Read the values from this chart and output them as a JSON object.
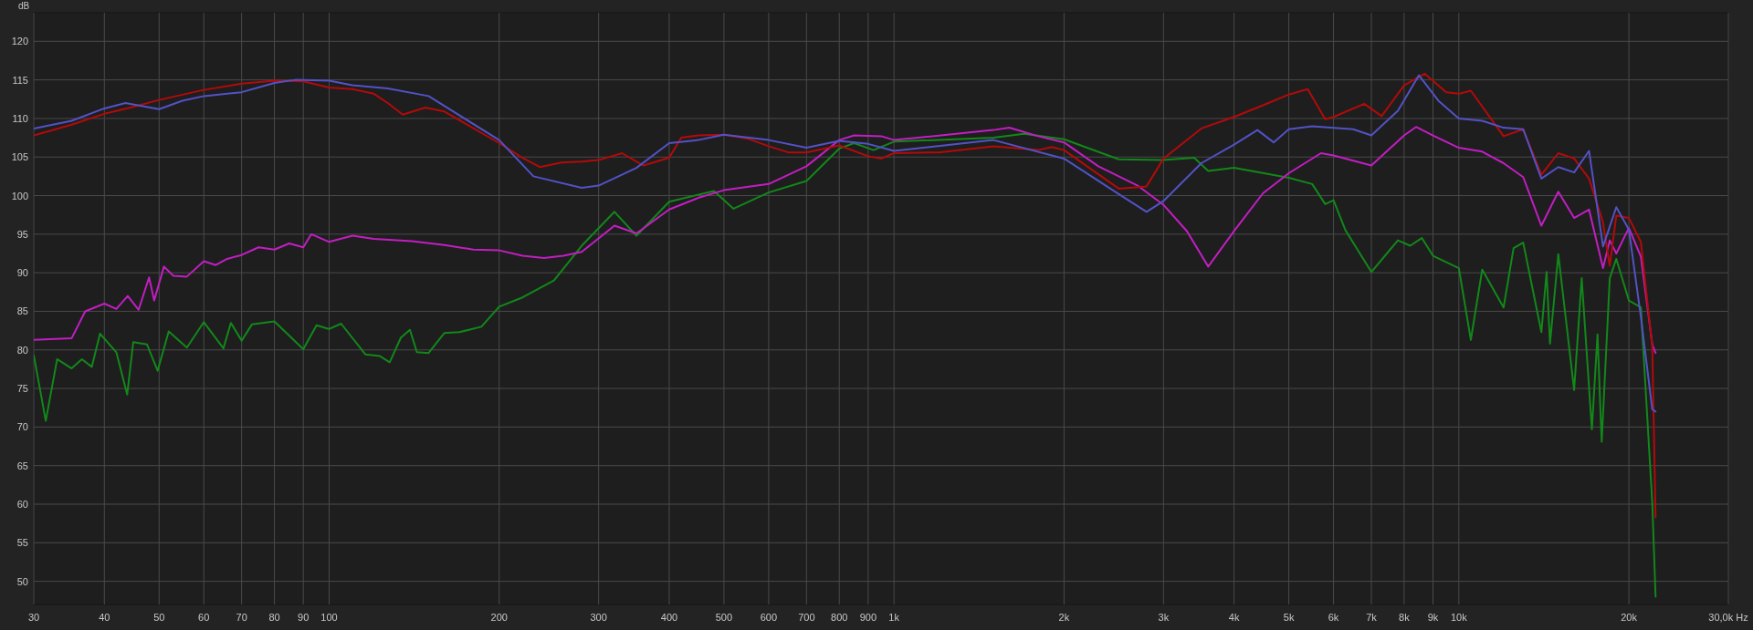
{
  "chart_data": {
    "type": "line",
    "ylabel": "dB",
    "log": "x",
    "grid": true,
    "marker": "none",
    "line_style": "solid",
    "xlim": [
      30,
      30000
    ],
    "ylim": [
      47,
      123.7
    ],
    "xticks": [
      30,
      40,
      50,
      60,
      70,
      80,
      90,
      100,
      200,
      300,
      400,
      500,
      600,
      700,
      800,
      900,
      {
        "value": 1000,
        "label": "1k"
      },
      {
        "value": 2000,
        "label": "2k"
      },
      {
        "value": 3000,
        "label": "3k"
      },
      {
        "value": 4000,
        "label": "4k"
      },
      {
        "value": 5000,
        "label": "5k"
      },
      {
        "value": 6000,
        "label": "6k"
      },
      {
        "value": 7000,
        "label": "7k"
      },
      {
        "value": 8000,
        "label": "8k"
      },
      {
        "value": 9000,
        "label": "9k"
      },
      {
        "value": 10000,
        "label": "10k"
      },
      {
        "value": 20000,
        "label": "20k"
      },
      {
        "value": 30000,
        "label": "30,0k Hz"
      }
    ],
    "yticks": [
      50,
      55,
      60,
      65,
      70,
      75,
      80,
      85,
      90,
      95,
      100,
      105,
      110,
      115,
      120
    ],
    "series": [
      {
        "color": "#12881a",
        "x": [
          30,
          31.5,
          33,
          35,
          36.5,
          38,
          39.3,
          42,
          43.9,
          45,
          47.6,
          49.7,
          52,
          56,
          60,
          65,
          67,
          70,
          73,
          80,
          90,
          95,
          100,
          105,
          116,
          123,
          128,
          134,
          139,
          143,
          150,
          160,
          170,
          186,
          200,
          220,
          250,
          280,
          320,
          350,
          400,
          480,
          520,
          600,
          700,
          800,
          850,
          920,
          1000,
          1500,
          1700,
          2000,
          2500,
          3000,
          3400,
          3600,
          4000,
          5000,
          5500,
          5800,
          6000,
          6300,
          7000,
          7800,
          8200,
          8600,
          9000,
          10000,
          10500,
          11000,
          12000,
          12500,
          13000,
          14000,
          14300,
          14500,
          15000,
          16000,
          16500,
          17200,
          17600,
          17900,
          18500,
          19000,
          20000,
          21000,
          22000,
          22300
        ],
        "values": [
          79.3,
          70.8,
          78.8,
          77.6,
          78.8,
          77.8,
          82.1,
          79.7,
          74.2,
          81,
          80.7,
          77.3,
          82.4,
          80.3,
          83.6,
          80.2,
          83.5,
          81.2,
          83.3,
          83.7,
          80.1,
          83.2,
          82.7,
          83.4,
          79.4,
          79.2,
          78.4,
          81.6,
          82.6,
          79.7,
          79.6,
          82.2,
          82.3,
          83,
          85.6,
          86.8,
          89,
          93.5,
          97.9,
          94.8,
          99.2,
          100.6,
          98.3,
          100.4,
          101.9,
          106.1,
          106.8,
          105.9,
          107,
          107.5,
          108,
          107.3,
          104.7,
          104.6,
          104.9,
          103.2,
          103.6,
          102.3,
          101.5,
          98.9,
          99.4,
          95.5,
          90.1,
          94.2,
          93.5,
          94.5,
          92.2,
          90.6,
          81.3,
          90.4,
          85.5,
          93.2,
          93.9,
          82.3,
          90.1,
          80.8,
          92.4,
          74.8,
          89.3,
          69.7,
          82,
          68.1,
          89.3,
          91.8,
          86.4,
          85.5,
          60.2,
          48
        ]
      },
      {
        "color": "#c21ec2",
        "x": [
          30,
          35,
          37,
          40,
          42,
          44,
          46,
          48,
          49,
          51,
          53,
          56,
          60,
          63,
          66,
          70,
          75,
          80,
          85,
          90,
          93,
          100,
          110,
          120,
          140,
          160,
          180,
          200,
          220,
          240,
          260,
          280,
          320,
          350,
          400,
          450,
          500,
          600,
          700,
          800,
          850,
          950,
          1000,
          1500,
          1600,
          1800,
          2000,
          2300,
          2700,
          3000,
          3300,
          3600,
          4000,
          4500,
          5000,
          5700,
          6000,
          7000,
          8000,
          8400,
          9000,
          10000,
          11000,
          12000,
          13000,
          14000,
          15000,
          16000,
          17000,
          18000,
          18500,
          19000,
          20000,
          21000,
          22000,
          22300
        ],
        "values": [
          81.3,
          81.5,
          85,
          86,
          85.3,
          87,
          85.2,
          89.4,
          86.4,
          90.8,
          89.6,
          89.5,
          91.5,
          91,
          91.8,
          92.3,
          93.3,
          93,
          93.8,
          93.3,
          95,
          94,
          94.8,
          94.4,
          94.1,
          93.6,
          93,
          92.9,
          92.2,
          91.9,
          92.2,
          92.7,
          96.1,
          95.1,
          98.2,
          99.7,
          100.7,
          101.5,
          103.8,
          107.2,
          107.8,
          107.7,
          107.2,
          108.5,
          108.8,
          107.7,
          106.9,
          103.8,
          101.3,
          98.8,
          95.4,
          90.8,
          95.4,
          100.3,
          102.9,
          105.5,
          105.2,
          103.9,
          107.8,
          108.9,
          107.8,
          106.2,
          105.7,
          104.2,
          102.4,
          96.1,
          100.5,
          97.1,
          98.2,
          90.6,
          94.2,
          92.5,
          95.8,
          92.1,
          80.7,
          79.6
        ]
      },
      {
        "color": "#b40a0a",
        "x": [
          30,
          35,
          40,
          45,
          50,
          60,
          70,
          80,
          90,
          100,
          110,
          120,
          127,
          135,
          148,
          160,
          200,
          220,
          236,
          258,
          280,
          300,
          330,
          360,
          400,
          420,
          450,
          500,
          550,
          600,
          650,
          700,
          800,
          900,
          950,
          1000,
          1200,
          1500,
          1800,
          1900,
          2000,
          2500,
          2800,
          3000,
          3500,
          4000,
          4500,
          5000,
          5400,
          5800,
          6000,
          6800,
          7300,
          8000,
          8700,
          9500,
          10000,
          10500,
          12000,
          13000,
          14000,
          15000,
          16000,
          17000,
          18000,
          18500,
          19000,
          20000,
          21000,
          22000,
          22300
        ],
        "values": [
          107.8,
          109.2,
          110.6,
          111.5,
          112.4,
          113.7,
          114.5,
          114.9,
          114.8,
          114,
          113.8,
          113.2,
          112,
          110.5,
          111.4,
          110.9,
          106.8,
          104.9,
          103.7,
          104.3,
          104.4,
          104.6,
          105.5,
          103.9,
          104.9,
          107.5,
          107.8,
          107.9,
          107.4,
          106.4,
          105.6,
          105.6,
          106.5,
          105.1,
          104.8,
          105.5,
          105.6,
          106.4,
          105.9,
          106.3,
          105.9,
          100.9,
          101.2,
          104.8,
          108.7,
          110.2,
          111.7,
          113.1,
          113.8,
          109.9,
          110.2,
          111.9,
          110.3,
          114.3,
          115.8,
          113.4,
          113.2,
          113.6,
          107.7,
          108.6,
          102.7,
          105.5,
          104.8,
          102.2,
          96.5,
          90.9,
          97.4,
          97.1,
          94,
          80.5,
          58.3
        ]
      },
      {
        "color": "#5252c6",
        "x": [
          30,
          35,
          40,
          43.6,
          50,
          55,
          60,
          70,
          80,
          87,
          100,
          110,
          127,
          150,
          200,
          230,
          280,
          300,
          350,
          400,
          450,
          500,
          600,
          700,
          800,
          900,
          1000,
          1500,
          2000,
          2500,
          2800,
          3000,
          3500,
          4000,
          4400,
          4700,
          5000,
          5500,
          6500,
          7000,
          7800,
          8500,
          9200,
          10000,
          11000,
          12000,
          13000,
          14000,
          15000,
          16000,
          17000,
          18000,
          19000,
          20000,
          21000,
          22000,
          22300
        ],
        "values": [
          108.7,
          109.7,
          111.3,
          112,
          111.2,
          112.3,
          112.9,
          113.4,
          114.6,
          115,
          114.9,
          114.3,
          113.9,
          112.9,
          107.2,
          102.5,
          101,
          101.3,
          103.6,
          106.8,
          107.2,
          107.9,
          107.2,
          106.2,
          107.1,
          106.7,
          105.8,
          107.2,
          104.8,
          100.2,
          97.9,
          99.3,
          104.2,
          106.6,
          108.5,
          106.9,
          108.6,
          109,
          108.6,
          107.8,
          111,
          115.6,
          112.3,
          110,
          109.7,
          108.8,
          108.6,
          102.2,
          103.7,
          103,
          105.8,
          93.4,
          98.5,
          95.6,
          84.3,
          72.3,
          72
        ]
      }
    ]
  }
}
